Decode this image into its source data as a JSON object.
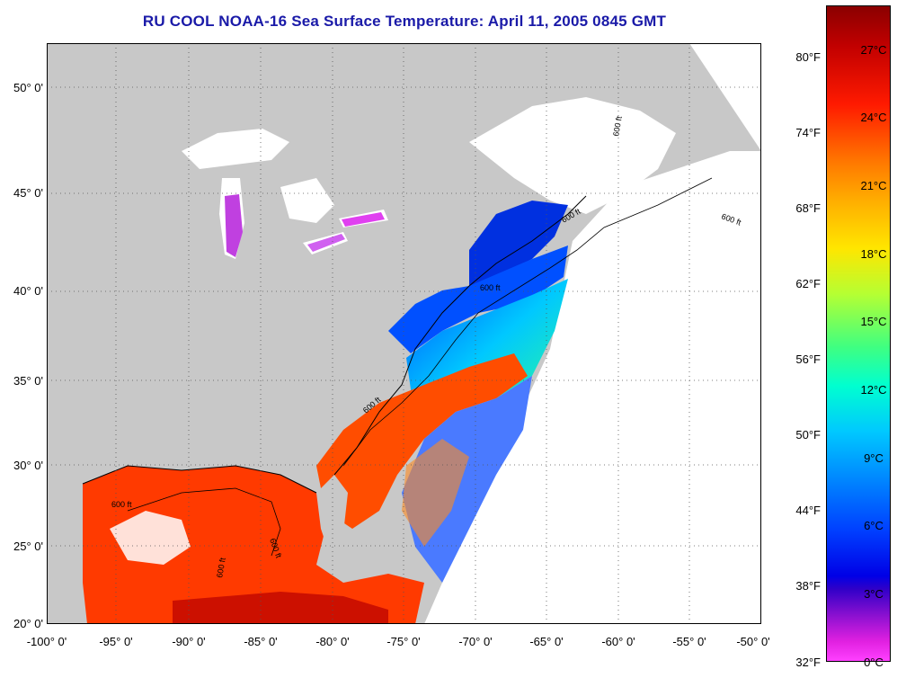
{
  "title": "RU COOL  NOAA-16  Sea Surface Temperature:  April 11, 2005 0845 GMT",
  "lat_labels": [
    "50° 0'",
    "45° 0'",
    "40° 0'",
    "35° 0'",
    "30° 0'",
    "25° 0'",
    "20° 0'"
  ],
  "lon_labels": [
    "-100° 0'",
    "-95° 0'",
    "-90° 0'",
    "-85° 0'",
    "-80° 0'",
    "-75° 0'",
    "-70° 0'",
    "-65° 0'",
    "-60° 0'",
    "-55° 0'",
    "-50° 0'"
  ],
  "colorbar": {
    "fahrenheit": [
      "80°F",
      "74°F",
      "68°F",
      "62°F",
      "56°F",
      "50°F",
      "44°F",
      "38°F",
      "32°F"
    ],
    "celsius": [
      "27°C",
      "24°C",
      "21°C",
      "18°C",
      "15°C",
      "12°C",
      "9°C",
      "6°C",
      "3°C",
      "0°C"
    ]
  },
  "isobath_labels": [
    "600 ft",
    "600 ft",
    "600 ft",
    "600 ft",
    "600 ft",
    "600 ft",
    "600 ft",
    "600 ft"
  ],
  "colors": {
    "land": "#c8c8c8",
    "no_data": "#ffffff",
    "title": "#1a1aa8",
    "warm": "#ff4d00",
    "cold": "#0040ff"
  }
}
